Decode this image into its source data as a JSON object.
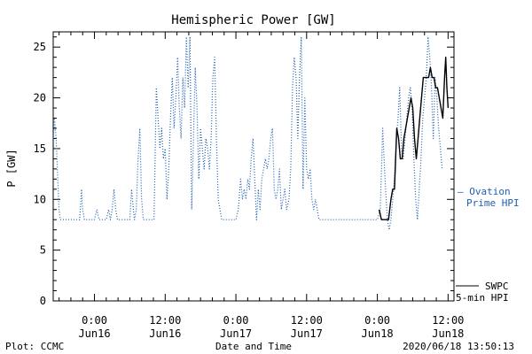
{
  "chart_data": {
    "type": "line",
    "title": "Hemispheric Power [GW]",
    "ylabel": "P [GW]",
    "xlabel": "Date and Time",
    "ylim": [
      0,
      26.5
    ],
    "xlim": [
      -7,
      61
    ],
    "x_unit": "hours from 2020-06-16 00:00",
    "y_ticks": [
      0,
      5,
      10,
      15,
      20,
      25
    ],
    "x_ticks": [
      {
        "x": 0,
        "time": "0:00",
        "date": "Jun16"
      },
      {
        "x": 12,
        "time": "12:00",
        "date": "Jun16"
      },
      {
        "x": 24,
        "time": "0:00",
        "date": "Jun17"
      },
      {
        "x": 36,
        "time": "12:00",
        "date": "Jun17"
      },
      {
        "x": 48,
        "time": "0:00",
        "date": "Jun18"
      },
      {
        "x": 60,
        "time": "12:00",
        "date": "Jun18"
      }
    ],
    "series": [
      {
        "name": "Ovation Prime HPI",
        "color": "#1f5fb5",
        "style": "dotted",
        "points": [
          [
            -7.0,
            16
          ],
          [
            -6.8,
            18
          ],
          [
            -6.5,
            16
          ],
          [
            -6.3,
            13
          ],
          [
            -6.0,
            9
          ],
          [
            -5.8,
            8
          ],
          [
            -5.5,
            8
          ],
          [
            -5.0,
            8
          ],
          [
            -4.5,
            8
          ],
          [
            -4.0,
            8
          ],
          [
            -3.5,
            8
          ],
          [
            -3.0,
            8
          ],
          [
            -2.5,
            8
          ],
          [
            -2.2,
            11
          ],
          [
            -2.0,
            9
          ],
          [
            -1.7,
            8
          ],
          [
            -1.3,
            8
          ],
          [
            -1.0,
            8
          ],
          [
            -0.7,
            8
          ],
          [
            -0.3,
            8
          ],
          [
            0.0,
            8
          ],
          [
            0.4,
            9
          ],
          [
            0.8,
            8
          ],
          [
            1.2,
            8
          ],
          [
            1.6,
            8
          ],
          [
            2.0,
            8
          ],
          [
            2.4,
            9
          ],
          [
            2.7,
            8
          ],
          [
            3.0,
            9
          ],
          [
            3.3,
            11
          ],
          [
            3.6,
            9
          ],
          [
            3.9,
            8
          ],
          [
            4.2,
            8
          ],
          [
            4.5,
            8
          ],
          [
            4.8,
            8
          ],
          [
            5.1,
            8
          ],
          [
            5.4,
            8
          ],
          [
            5.7,
            8
          ],
          [
            6.0,
            8
          ],
          [
            6.3,
            11
          ],
          [
            6.6,
            9
          ],
          [
            6.8,
            8
          ],
          [
            7.1,
            9
          ],
          [
            7.4,
            14
          ],
          [
            7.7,
            17
          ],
          [
            8.0,
            10
          ],
          [
            8.3,
            8
          ],
          [
            8.6,
            8
          ],
          [
            8.9,
            8
          ],
          [
            9.2,
            8
          ],
          [
            9.5,
            8
          ],
          [
            9.8,
            8
          ],
          [
            10.1,
            8
          ],
          [
            10.5,
            21
          ],
          [
            10.8,
            18
          ],
          [
            11.1,
            15
          ],
          [
            11.4,
            17
          ],
          [
            11.7,
            14
          ],
          [
            12.0,
            15
          ],
          [
            12.3,
            10
          ],
          [
            12.6,
            13
          ],
          [
            12.9,
            18
          ],
          [
            13.2,
            22
          ],
          [
            13.5,
            17
          ],
          [
            13.8,
            20
          ],
          [
            14.1,
            24
          ],
          [
            14.4,
            19
          ],
          [
            14.7,
            16
          ],
          [
            15.0,
            22
          ],
          [
            15.3,
            19
          ],
          [
            15.6,
            26
          ],
          [
            15.9,
            21
          ],
          [
            16.2,
            26
          ],
          [
            16.5,
            9
          ],
          [
            16.8,
            16
          ],
          [
            17.1,
            23
          ],
          [
            17.4,
            19
          ],
          [
            17.7,
            12
          ],
          [
            18.0,
            17
          ],
          [
            18.3,
            15
          ],
          [
            18.6,
            13
          ],
          [
            18.9,
            16
          ],
          [
            19.2,
            15
          ],
          [
            19.5,
            13
          ],
          [
            19.8,
            16
          ],
          [
            20.1,
            22
          ],
          [
            20.4,
            24
          ],
          [
            20.7,
            16
          ],
          [
            21.0,
            10
          ],
          [
            21.3,
            9
          ],
          [
            21.6,
            8
          ],
          [
            22.0,
            8
          ],
          [
            22.5,
            8
          ],
          [
            23.0,
            8
          ],
          [
            23.5,
            8
          ],
          [
            24.0,
            8
          ],
          [
            24.4,
            9
          ],
          [
            24.8,
            12
          ],
          [
            25.1,
            10
          ],
          [
            25.4,
            11
          ],
          [
            25.7,
            10
          ],
          [
            26.0,
            12
          ],
          [
            26.3,
            11
          ],
          [
            26.6,
            14
          ],
          [
            26.9,
            16
          ],
          [
            27.2,
            12
          ],
          [
            27.5,
            8
          ],
          [
            27.8,
            11
          ],
          [
            28.1,
            9
          ],
          [
            28.4,
            12
          ],
          [
            28.7,
            13
          ],
          [
            29.0,
            14
          ],
          [
            29.3,
            13
          ],
          [
            29.6,
            14
          ],
          [
            29.9,
            16
          ],
          [
            30.2,
            17
          ],
          [
            30.5,
            11
          ],
          [
            30.8,
            10
          ],
          [
            31.1,
            11
          ],
          [
            31.4,
            13
          ],
          [
            31.7,
            9
          ],
          [
            32.0,
            10
          ],
          [
            32.3,
            11
          ],
          [
            32.6,
            9
          ],
          [
            33.0,
            10
          ],
          [
            33.3,
            13
          ],
          [
            33.6,
            21
          ],
          [
            33.9,
            24
          ],
          [
            34.2,
            22
          ],
          [
            34.5,
            16
          ],
          [
            34.8,
            22
          ],
          [
            35.1,
            26
          ],
          [
            35.4,
            11
          ],
          [
            35.7,
            20
          ],
          [
            36.0,
            13
          ],
          [
            36.3,
            12
          ],
          [
            36.6,
            13
          ],
          [
            36.9,
            10
          ],
          [
            37.2,
            9
          ],
          [
            37.5,
            10
          ],
          [
            37.8,
            9
          ],
          [
            38.1,
            8
          ],
          [
            38.5,
            8
          ],
          [
            39.0,
            8
          ],
          [
            39.5,
            8
          ],
          [
            40.0,
            8
          ],
          [
            40.5,
            8
          ],
          [
            41.0,
            8
          ],
          [
            41.5,
            8
          ],
          [
            42.0,
            8
          ],
          [
            42.5,
            8
          ],
          [
            43.0,
            8
          ],
          [
            43.5,
            8
          ],
          [
            44.0,
            8
          ],
          [
            44.5,
            8
          ],
          [
            45.0,
            8
          ],
          [
            45.5,
            8
          ],
          [
            46.0,
            8
          ],
          [
            46.5,
            8
          ],
          [
            47.0,
            8
          ],
          [
            47.5,
            8
          ],
          [
            48.0,
            8
          ],
          [
            48.5,
            9
          ],
          [
            48.9,
            17
          ],
          [
            49.3,
            12
          ],
          [
            49.7,
            8
          ],
          [
            50.0,
            7
          ],
          [
            50.3,
            8
          ],
          [
            50.6,
            10
          ],
          [
            50.9,
            12
          ],
          [
            51.2,
            16
          ],
          [
            51.5,
            18
          ],
          [
            51.8,
            21
          ],
          [
            52.1,
            15
          ],
          [
            52.4,
            14
          ],
          [
            52.7,
            16
          ],
          [
            53.0,
            18
          ],
          [
            53.3,
            20
          ],
          [
            53.6,
            21
          ],
          [
            53.9,
            19
          ],
          [
            54.2,
            14
          ],
          [
            54.5,
            10
          ],
          [
            54.8,
            8
          ],
          [
            55.1,
            11
          ],
          [
            55.4,
            14
          ],
          [
            55.7,
            18
          ],
          [
            56.0,
            20
          ],
          [
            56.3,
            22
          ],
          [
            56.6,
            26
          ],
          [
            56.9,
            24
          ],
          [
            57.2,
            21
          ],
          [
            57.5,
            16
          ],
          [
            57.8,
            22
          ],
          [
            58.1,
            20
          ],
          [
            58.4,
            17
          ],
          [
            58.7,
            15
          ],
          [
            59.0,
            13
          ]
        ]
      },
      {
        "name": "SWPC 5-min HPI",
        "color": "#000000",
        "style": "solid",
        "points": [
          [
            48.3,
            9
          ],
          [
            48.7,
            8
          ],
          [
            49.1,
            8
          ],
          [
            49.5,
            8
          ],
          [
            49.9,
            8
          ],
          [
            50.3,
            10
          ],
          [
            50.6,
            11
          ],
          [
            50.9,
            11
          ],
          [
            51.1,
            14
          ],
          [
            51.3,
            17
          ],
          [
            51.6,
            16
          ],
          [
            51.9,
            14
          ],
          [
            52.2,
            14
          ],
          [
            52.5,
            16
          ],
          [
            52.8,
            17
          ],
          [
            53.1,
            18
          ],
          [
            53.4,
            19
          ],
          [
            53.7,
            20
          ],
          [
            54.0,
            19
          ],
          [
            54.3,
            16
          ],
          [
            54.6,
            14
          ],
          [
            54.9,
            16
          ],
          [
            55.2,
            18
          ],
          [
            55.5,
            20
          ],
          [
            55.8,
            22
          ],
          [
            56.1,
            22
          ],
          [
            56.4,
            22
          ],
          [
            56.7,
            22
          ],
          [
            57.0,
            23
          ],
          [
            57.3,
            22
          ],
          [
            57.6,
            22
          ],
          [
            57.9,
            21
          ],
          [
            58.2,
            21
          ],
          [
            58.5,
            20
          ],
          [
            58.8,
            19
          ],
          [
            59.1,
            18
          ],
          [
            59.4,
            22
          ],
          [
            59.6,
            24
          ],
          [
            59.8,
            21
          ],
          [
            60.0,
            19
          ]
        ]
      }
    ]
  },
  "legend": {
    "ovation_line1": "— Ovation",
    "ovation_line2": "Prime HPI",
    "swpc_line1": "SWPC",
    "swpc_line2": "5-min HPI"
  },
  "footer": {
    "plot_credit": "Plot: CCMC",
    "timestamp": "2020/06/18 13:50:13"
  }
}
